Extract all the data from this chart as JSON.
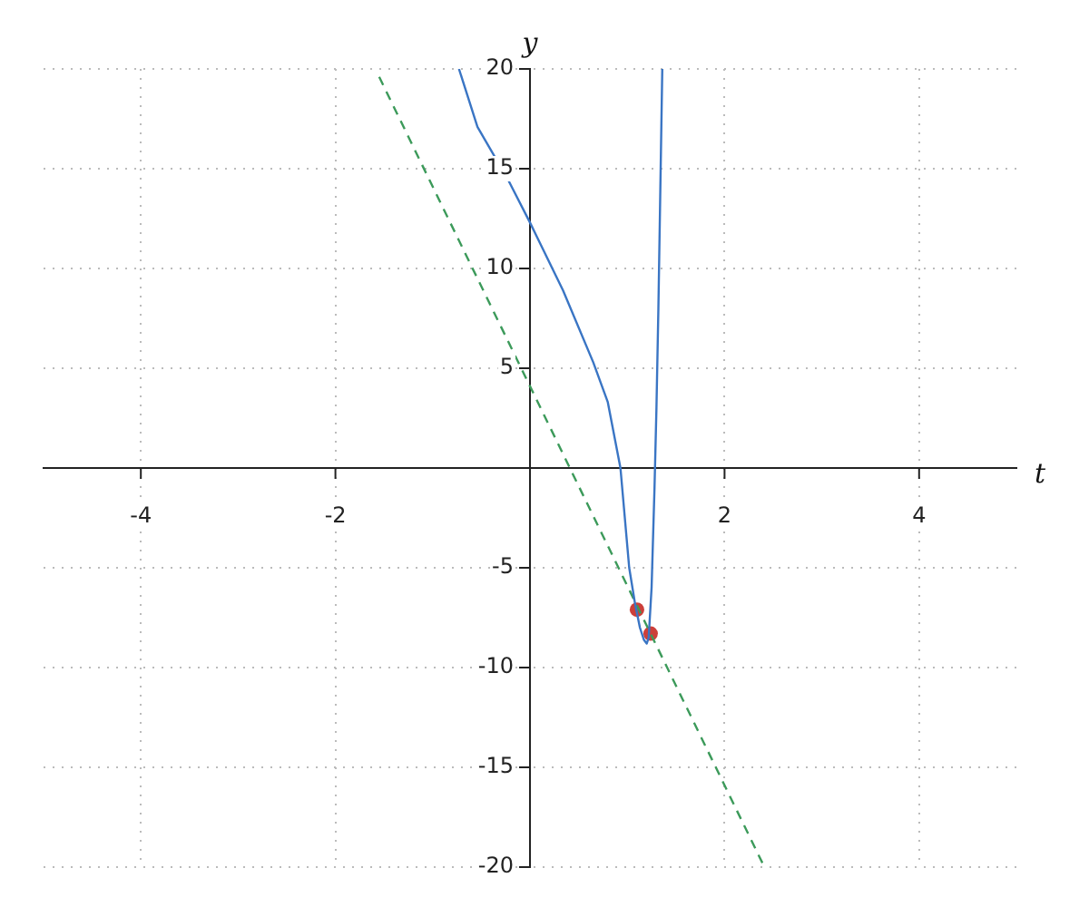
{
  "chart_data": {
    "type": "line",
    "xlabel": "t",
    "ylabel": "y",
    "xlim": [
      -5,
      5
    ],
    "ylim": [
      -20,
      20
    ],
    "xticks": [
      -4,
      -2,
      2,
      4
    ],
    "yticks": [
      -20,
      -15,
      -10,
      -5,
      5,
      10,
      15,
      20
    ],
    "grid": true,
    "legend": false,
    "series": [
      {
        "color": "#3a75c4",
        "line_style": "solid",
        "marker": "none",
        "x": [
          -0.73,
          -0.54,
          -0.22,
          0,
          0.34,
          0.65,
          0.8,
          0.93,
          1.02,
          1.08,
          1.13,
          1.17,
          1.2,
          1.22,
          1.25,
          1.28,
          1.3,
          1.32,
          1.34,
          1.36
        ],
        "values": [
          20,
          17.1,
          14.4,
          12.3,
          8.9,
          5.3,
          3.3,
          0,
          -5,
          -6.8,
          -8,
          -8.6,
          -8.8,
          -8.5,
          -6,
          -1,
          3,
          8,
          14,
          20
        ]
      },
      {
        "color": "#3c9a5a",
        "line_style": "dashed",
        "marker": "none",
        "x": [
          -1.55,
          2.41
        ],
        "values": [
          19.6,
          -20
        ]
      },
      {
        "type": "scatter",
        "color": "#cc3f3a",
        "marker": "circle",
        "x": [
          1.1,
          1.24
        ],
        "values": [
          -7.1,
          -8.3
        ]
      }
    ]
  }
}
